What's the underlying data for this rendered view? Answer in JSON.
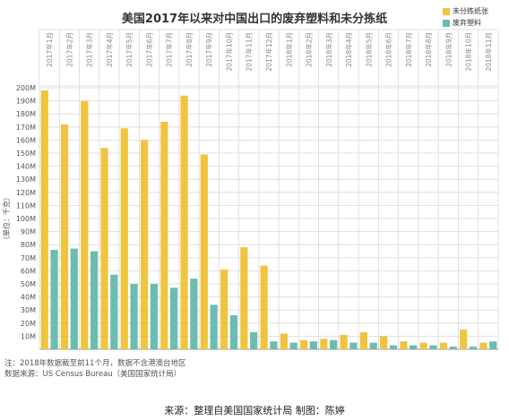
{
  "colors": {
    "series1": "#EFC540",
    "series2": "#6CBCB0",
    "grid": "#d9d9d9",
    "axis": "#555555"
  },
  "notes": {
    "note": "注：2018年数据截至前11个月，数据不含港澳台地区",
    "data_source": "数据来源：US Census Bureau（美国国家统计局）",
    "source": "来源：整理自美国国家统计局 制图：陈婷"
  },
  "chart_data": {
    "type": "bar",
    "title": "美国2017年以来对中国出口的废弃塑料和未分拣纸",
    "xlabel": "",
    "ylabel": "（单位：千克）",
    "ylim": [
      0,
      200
    ],
    "y_unit_suffix": "M",
    "yticks": [
      10,
      20,
      30,
      40,
      50,
      60,
      70,
      80,
      90,
      100,
      110,
      120,
      130,
      140,
      150,
      160,
      170,
      180,
      190,
      200
    ],
    "categories": [
      "2017年1月",
      "2017年2月",
      "2017年3月",
      "2017年4月",
      "2017年5月",
      "2017年6月",
      "2017年7月",
      "2017年8月",
      "2017年9月",
      "2017年10月",
      "2017年11月",
      "2017年12月",
      "2018年1月",
      "2018年2月",
      "2018年3月",
      "2018年4月",
      "2018年5月",
      "2018年6月",
      "2018年7月",
      "2018年8月",
      "2018年9月",
      "2018年10月",
      "2018年11月"
    ],
    "series": [
      {
        "name": "未分拣纸张",
        "values": [
          198,
          172,
          190,
          154,
          169,
          160,
          174,
          194,
          149,
          61,
          78,
          64,
          12,
          7,
          8,
          11,
          13,
          10,
          6,
          5,
          5,
          15,
          5
        ]
      },
      {
        "name": "废弃塑料",
        "values": [
          76,
          77,
          75,
          57,
          50,
          50,
          47,
          54,
          34,
          26,
          13,
          6,
          5,
          6,
          7,
          5,
          5,
          3,
          3,
          3,
          2,
          2,
          6
        ]
      }
    ],
    "grid": true,
    "legend_position": "top-right"
  }
}
